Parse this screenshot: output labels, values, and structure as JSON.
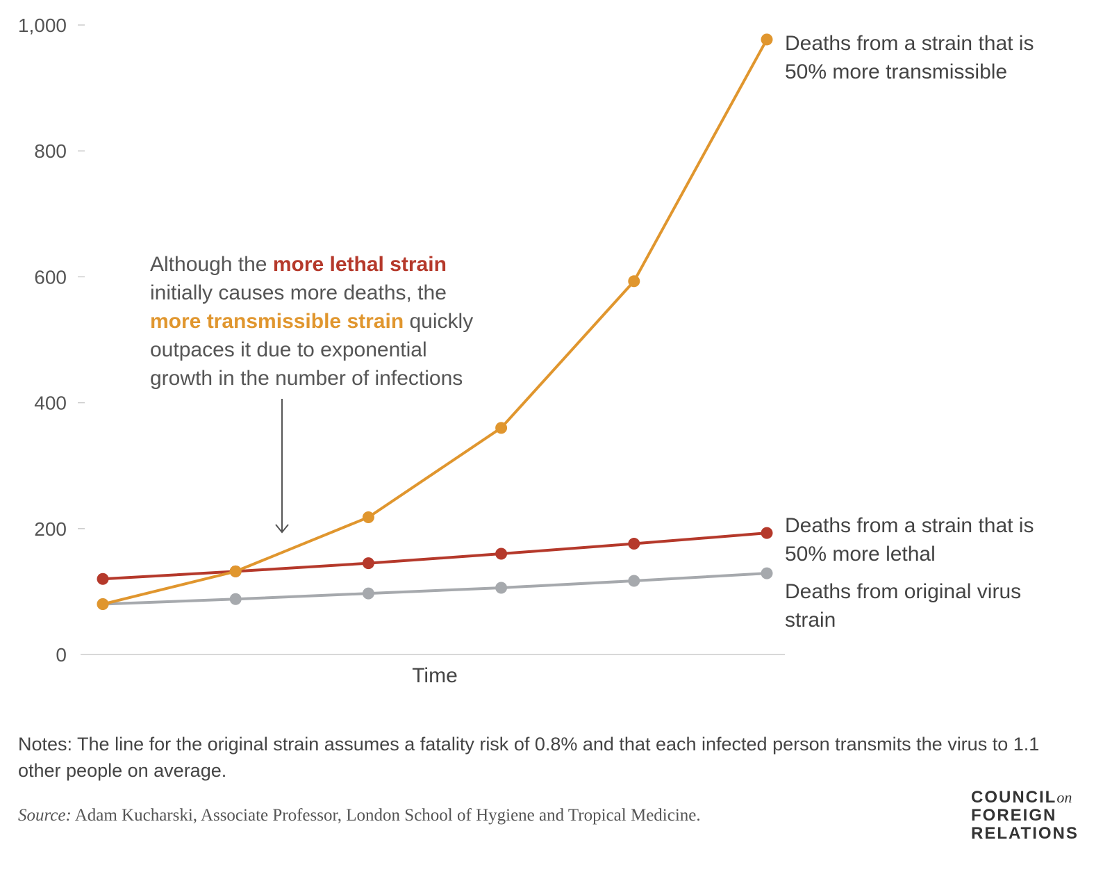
{
  "colors": {
    "transmissible": "#e0962e",
    "lethal": "#b5392b",
    "original": "#a6a9ad",
    "axis": "#cccccc",
    "text": "#444444"
  },
  "chart_data": {
    "type": "line",
    "xlabel": "Time",
    "ylabel": "",
    "ylim": [
      0,
      1000
    ],
    "yticks": [
      "0",
      "200",
      "400",
      "600",
      "800",
      "1,000"
    ],
    "ytick_values": [
      0,
      200,
      400,
      600,
      800,
      1000
    ],
    "x": [
      1,
      2,
      3,
      4,
      5,
      6
    ],
    "series": [
      {
        "key": "transmissible",
        "values": [
          80,
          132,
          218,
          360,
          593,
          977
        ]
      },
      {
        "key": "lethal",
        "values": [
          120,
          132,
          145,
          160,
          176,
          193
        ]
      },
      {
        "key": "original",
        "values": [
          80,
          88,
          97,
          106,
          117,
          129
        ]
      }
    ],
    "series_labels": {
      "transmissible": [
        "Deaths from a strain that is",
        "50% more transmissible"
      ],
      "lethal": [
        "Deaths from a strain that is",
        "50% more lethal"
      ],
      "original": [
        "Deaths from original virus",
        "strain"
      ]
    },
    "annotation": {
      "line1_pre": "Although the ",
      "line1_hl": "more lethal strain",
      "line2": "initially causes more deaths, the",
      "line3_hl": "more transmissible strain",
      "line3_post": " quickly",
      "line4": "outpaces it due to exponential",
      "line5": "growth in the number of infections"
    }
  },
  "footer": {
    "notes": "Notes: The line for the original strain assumes a fatality risk of 0.8% and that each infected person transmits the virus to 1.1 other people on average.",
    "source_prefix": "Source:",
    "source_text": " Adam Kucharski, Associate Professor, London School of Hygiene and Tropical Medicine."
  },
  "logo": {
    "line1": "COUNCIL",
    "on": "on",
    "line2": "FOREIGN",
    "line3": "RELATIONS"
  }
}
